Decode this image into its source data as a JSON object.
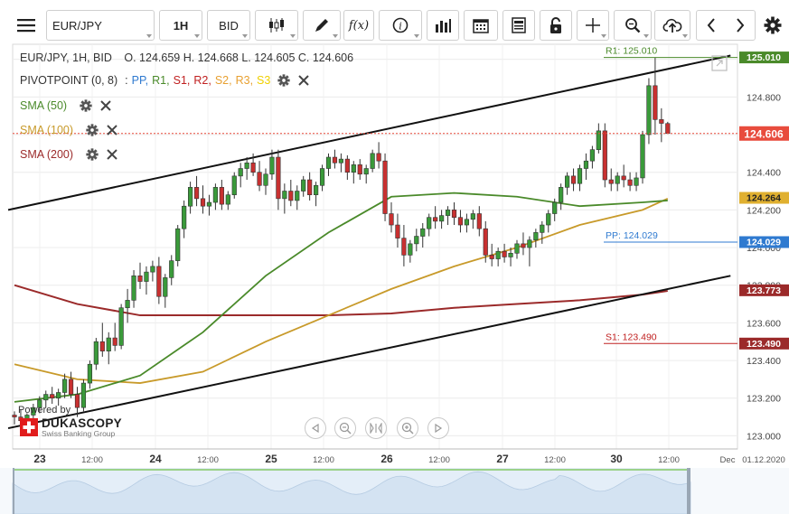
{
  "toolbar": {
    "symbol": "EUR/JPY",
    "interval": "1H",
    "price_type": "BID",
    "icons": [
      "menu-icon",
      "candles-icon",
      "draw-icon",
      "function-icon",
      "info-icon",
      "bars-icon",
      "calendar-icon",
      "report-icon",
      "lock-icon",
      "crosshair-icon",
      "zoom-icon",
      "upload-icon",
      "back-icon",
      "forward-icon",
      "settings-icon"
    ]
  },
  "legend": {
    "title": "EUR/JPY, 1H, BID",
    "ohlc": "O. 124.659 H. 124.668 L. 124.605 C. 124.606",
    "pivot_label": "PIVOTPOINT (0, 8)",
    "pivot_sep": ":",
    "pivot_series": [
      {
        "name": "PP,",
        "color": "#2f7ad0"
      },
      {
        "name": "R1,",
        "color": "#4a8a2a"
      },
      {
        "name": "S1,",
        "color": "#c02020"
      },
      {
        "name": "R2,",
        "color": "#c02020"
      },
      {
        "name": "S2,",
        "color": "#e8a030"
      },
      {
        "name": "R3,",
        "color": "#e8a030"
      },
      {
        "name": "S3",
        "color": "#f0d000"
      }
    ],
    "sma": [
      {
        "label": "SMA (50)",
        "color": "#4a8a2a"
      },
      {
        "label": "SMA (100)",
        "color": "#c89a2a"
      },
      {
        "label": "SMA (200)",
        "color": "#9b2a2a"
      }
    ]
  },
  "branding": {
    "powered_by": "Powered by",
    "logo": "DUKASCOPY",
    "logo_sub": "Swiss Banking Group"
  },
  "chart_data": {
    "type": "line",
    "title": "EUR/JPY, 1H, BID",
    "current_price": 124.606,
    "y_ticks": [
      123.0,
      123.2,
      123.4,
      123.6,
      123.8,
      124.0,
      124.2,
      124.4,
      124.6,
      124.8,
      125.0
    ],
    "y_tick_labels": [
      "123.000",
      "123.200",
      "123.400",
      "123.600",
      "123.800",
      "124.000",
      "124.200",
      "124.400",
      "124.600",
      "124.800",
      "125.000"
    ],
    "ylim": [
      122.93,
      125.08
    ],
    "x_labels": [
      "23",
      "12:00",
      "24",
      "12:00",
      "25",
      "12:00",
      "26",
      "12:00",
      "27",
      "12:00",
      "30",
      "12:00",
      "Dec",
      "01.12.2020"
    ],
    "x_major": [
      "23",
      "24",
      "25",
      "26",
      "27",
      "30"
    ],
    "pivots": [
      {
        "name": "R1",
        "label": "R1: 125.010",
        "value": 125.01,
        "color": "#4a8a2a"
      },
      {
        "name": "PP",
        "label": "PP: 124.029",
        "value": 124.029,
        "color": "#2f7ad0"
      },
      {
        "name": "S1",
        "label": "S1: 123.490",
        "value": 123.49,
        "color": "#c02020"
      }
    ],
    "price_tags": [
      {
        "label": "125.010",
        "value": 125.01,
        "color": "#4a8a2a"
      },
      {
        "label": "124.606",
        "value": 124.606,
        "color": "#e84c3d"
      },
      {
        "label": "124.264",
        "value": 124.264,
        "color": "#e0b030"
      },
      {
        "label": "124.029",
        "value": 124.029,
        "color": "#2f7ad0"
      },
      {
        "label": "123.773",
        "value": 123.773,
        "color": "#9b2a2a"
      },
      {
        "label": "123.490",
        "value": 123.49,
        "color": "#9b2a2a"
      }
    ],
    "candles": [
      {
        "o": 123.11,
        "h": 123.13,
        "l": 123.06,
        "c": 123.1
      },
      {
        "o": 123.1,
        "h": 123.14,
        "l": 123.05,
        "c": 123.08
      },
      {
        "o": 123.08,
        "h": 123.12,
        "l": 123.04,
        "c": 123.11
      },
      {
        "o": 123.11,
        "h": 123.17,
        "l": 123.07,
        "c": 123.15
      },
      {
        "o": 123.15,
        "h": 123.21,
        "l": 123.12,
        "c": 123.19
      },
      {
        "o": 123.19,
        "h": 123.24,
        "l": 123.15,
        "c": 123.22
      },
      {
        "o": 123.22,
        "h": 123.26,
        "l": 123.17,
        "c": 123.2
      },
      {
        "o": 123.2,
        "h": 123.25,
        "l": 123.16,
        "c": 123.23
      },
      {
        "o": 123.23,
        "h": 123.33,
        "l": 123.2,
        "c": 123.3
      },
      {
        "o": 123.3,
        "h": 123.34,
        "l": 123.2,
        "c": 123.22
      },
      {
        "o": 123.22,
        "h": 123.26,
        "l": 123.1,
        "c": 123.15
      },
      {
        "o": 123.15,
        "h": 123.3,
        "l": 123.13,
        "c": 123.28
      },
      {
        "o": 123.28,
        "h": 123.4,
        "l": 123.25,
        "c": 123.38
      },
      {
        "o": 123.38,
        "h": 123.52,
        "l": 123.35,
        "c": 123.5
      },
      {
        "o": 123.5,
        "h": 123.6,
        "l": 123.42,
        "c": 123.45
      },
      {
        "o": 123.45,
        "h": 123.55,
        "l": 123.38,
        "c": 123.52
      },
      {
        "o": 123.52,
        "h": 123.6,
        "l": 123.45,
        "c": 123.48
      },
      {
        "o": 123.48,
        "h": 123.7,
        "l": 123.46,
        "c": 123.68
      },
      {
        "o": 123.68,
        "h": 123.78,
        "l": 123.6,
        "c": 123.72
      },
      {
        "o": 123.72,
        "h": 123.88,
        "l": 123.68,
        "c": 123.85
      },
      {
        "o": 123.85,
        "h": 123.92,
        "l": 123.78,
        "c": 123.82
      },
      {
        "o": 123.82,
        "h": 123.9,
        "l": 123.75,
        "c": 123.87
      },
      {
        "o": 123.87,
        "h": 123.93,
        "l": 123.82,
        "c": 123.9
      },
      {
        "o": 123.9,
        "h": 123.95,
        "l": 123.7,
        "c": 123.74
      },
      {
        "o": 123.74,
        "h": 123.86,
        "l": 123.68,
        "c": 123.84
      },
      {
        "o": 123.84,
        "h": 123.96,
        "l": 123.8,
        "c": 123.93
      },
      {
        "o": 123.93,
        "h": 124.12,
        "l": 123.9,
        "c": 124.1
      },
      {
        "o": 124.1,
        "h": 124.25,
        "l": 124.05,
        "c": 124.22
      },
      {
        "o": 124.22,
        "h": 124.35,
        "l": 124.18,
        "c": 124.32
      },
      {
        "o": 124.32,
        "h": 124.38,
        "l": 124.22,
        "c": 124.26
      },
      {
        "o": 124.26,
        "h": 124.33,
        "l": 124.18,
        "c": 124.22
      },
      {
        "o": 124.22,
        "h": 124.28,
        "l": 124.17,
        "c": 124.24
      },
      {
        "o": 124.24,
        "h": 124.34,
        "l": 124.2,
        "c": 124.32
      },
      {
        "o": 124.32,
        "h": 124.36,
        "l": 124.2,
        "c": 124.23
      },
      {
        "o": 124.23,
        "h": 124.3,
        "l": 124.2,
        "c": 124.28
      },
      {
        "o": 124.28,
        "h": 124.4,
        "l": 124.26,
        "c": 124.38
      },
      {
        "o": 124.38,
        "h": 124.45,
        "l": 124.32,
        "c": 124.42
      },
      {
        "o": 124.42,
        "h": 124.48,
        "l": 124.36,
        "c": 124.45
      },
      {
        "o": 124.45,
        "h": 124.5,
        "l": 124.38,
        "c": 124.4
      },
      {
        "o": 124.4,
        "h": 124.46,
        "l": 124.3,
        "c": 124.33
      },
      {
        "o": 124.33,
        "h": 124.42,
        "l": 124.28,
        "c": 124.39
      },
      {
        "o": 124.39,
        "h": 124.52,
        "l": 124.36,
        "c": 124.48
      },
      {
        "o": 124.48,
        "h": 124.52,
        "l": 124.2,
        "c": 124.26
      },
      {
        "o": 124.26,
        "h": 124.34,
        "l": 124.18,
        "c": 124.3
      },
      {
        "o": 124.3,
        "h": 124.36,
        "l": 124.22,
        "c": 124.25
      },
      {
        "o": 124.25,
        "h": 124.33,
        "l": 124.2,
        "c": 124.3
      },
      {
        "o": 124.3,
        "h": 124.38,
        "l": 124.27,
        "c": 124.36
      },
      {
        "o": 124.36,
        "h": 124.4,
        "l": 124.25,
        "c": 124.28
      },
      {
        "o": 124.28,
        "h": 124.35,
        "l": 124.22,
        "c": 124.33
      },
      {
        "o": 124.33,
        "h": 124.44,
        "l": 124.3,
        "c": 124.42
      },
      {
        "o": 124.42,
        "h": 124.5,
        "l": 124.38,
        "c": 124.48
      },
      {
        "o": 124.48,
        "h": 124.52,
        "l": 124.42,
        "c": 124.45
      },
      {
        "o": 124.45,
        "h": 124.5,
        "l": 124.4,
        "c": 124.47
      },
      {
        "o": 124.47,
        "h": 124.49,
        "l": 124.36,
        "c": 124.4
      },
      {
        "o": 124.4,
        "h": 124.46,
        "l": 124.34,
        "c": 124.44
      },
      {
        "o": 124.44,
        "h": 124.47,
        "l": 124.36,
        "c": 124.39
      },
      {
        "o": 124.39,
        "h": 124.44,
        "l": 124.34,
        "c": 124.42
      },
      {
        "o": 124.42,
        "h": 124.52,
        "l": 124.4,
        "c": 124.5
      },
      {
        "o": 124.5,
        "h": 124.56,
        "l": 124.42,
        "c": 124.46
      },
      {
        "o": 124.46,
        "h": 124.5,
        "l": 124.14,
        "c": 124.18
      },
      {
        "o": 124.18,
        "h": 124.24,
        "l": 124.08,
        "c": 124.12
      },
      {
        "o": 124.12,
        "h": 124.18,
        "l": 124.0,
        "c": 124.05
      },
      {
        "o": 124.05,
        "h": 124.12,
        "l": 123.9,
        "c": 123.96
      },
      {
        "o": 123.96,
        "h": 124.04,
        "l": 123.92,
        "c": 124.02
      },
      {
        "o": 124.02,
        "h": 124.1,
        "l": 123.98,
        "c": 124.06
      },
      {
        "o": 124.06,
        "h": 124.13,
        "l": 124.0,
        "c": 124.1
      },
      {
        "o": 124.1,
        "h": 124.18,
        "l": 124.06,
        "c": 124.16
      },
      {
        "o": 124.16,
        "h": 124.22,
        "l": 124.1,
        "c": 124.14
      },
      {
        "o": 124.14,
        "h": 124.2,
        "l": 124.1,
        "c": 124.17
      },
      {
        "o": 124.17,
        "h": 124.22,
        "l": 124.12,
        "c": 124.2
      },
      {
        "o": 124.2,
        "h": 124.24,
        "l": 124.12,
        "c": 124.16
      },
      {
        "o": 124.16,
        "h": 124.2,
        "l": 124.08,
        "c": 124.12
      },
      {
        "o": 124.12,
        "h": 124.18,
        "l": 124.08,
        "c": 124.15
      },
      {
        "o": 124.15,
        "h": 124.2,
        "l": 124.1,
        "c": 124.18
      },
      {
        "o": 124.18,
        "h": 124.22,
        "l": 124.06,
        "c": 124.1
      },
      {
        "o": 124.1,
        "h": 124.14,
        "l": 123.92,
        "c": 123.96
      },
      {
        "o": 123.96,
        "h": 124.02,
        "l": 123.9,
        "c": 123.94
      },
      {
        "o": 123.94,
        "h": 124.0,
        "l": 123.9,
        "c": 123.98
      },
      {
        "o": 123.98,
        "h": 124.02,
        "l": 123.92,
        "c": 123.95
      },
      {
        "o": 123.95,
        "h": 124.0,
        "l": 123.9,
        "c": 123.97
      },
      {
        "o": 123.97,
        "h": 124.04,
        "l": 123.94,
        "c": 124.02
      },
      {
        "o": 124.02,
        "h": 124.08,
        "l": 123.96,
        "c": 124.0
      },
      {
        "o": 124.0,
        "h": 124.06,
        "l": 123.9,
        "c": 124.04
      },
      {
        "o": 124.04,
        "h": 124.1,
        "l": 124.0,
        "c": 124.08
      },
      {
        "o": 124.08,
        "h": 124.14,
        "l": 124.02,
        "c": 124.12
      },
      {
        "o": 124.12,
        "h": 124.2,
        "l": 124.08,
        "c": 124.18
      },
      {
        "o": 124.18,
        "h": 124.26,
        "l": 124.14,
        "c": 124.24
      },
      {
        "o": 124.24,
        "h": 124.34,
        "l": 124.2,
        "c": 124.32
      },
      {
        "o": 124.32,
        "h": 124.4,
        "l": 124.28,
        "c": 124.38
      },
      {
        "o": 124.38,
        "h": 124.42,
        "l": 124.3,
        "c": 124.34
      },
      {
        "o": 124.34,
        "h": 124.44,
        "l": 124.3,
        "c": 124.42
      },
      {
        "o": 124.42,
        "h": 124.5,
        "l": 124.36,
        "c": 124.46
      },
      {
        "o": 124.46,
        "h": 124.54,
        "l": 124.42,
        "c": 124.52
      },
      {
        "o": 124.52,
        "h": 124.66,
        "l": 124.5,
        "c": 124.62
      },
      {
        "o": 124.62,
        "h": 124.66,
        "l": 124.32,
        "c": 124.36
      },
      {
        "o": 124.36,
        "h": 124.42,
        "l": 124.3,
        "c": 124.34
      },
      {
        "o": 124.34,
        "h": 124.4,
        "l": 124.3,
        "c": 124.38
      },
      {
        "o": 124.38,
        "h": 124.44,
        "l": 124.32,
        "c": 124.36
      },
      {
        "o": 124.36,
        "h": 124.4,
        "l": 124.3,
        "c": 124.33
      },
      {
        "o": 124.33,
        "h": 124.4,
        "l": 124.3,
        "c": 124.37
      },
      {
        "o": 124.37,
        "h": 124.62,
        "l": 124.34,
        "c": 124.6
      },
      {
        "o": 124.6,
        "h": 124.9,
        "l": 124.55,
        "c": 124.86
      },
      {
        "o": 124.86,
        "h": 125.01,
        "l": 124.6,
        "c": 124.68
      },
      {
        "o": 124.68,
        "h": 124.74,
        "l": 124.56,
        "c": 124.66
      },
      {
        "o": 124.659,
        "h": 124.668,
        "l": 124.605,
        "c": 124.606
      }
    ],
    "sma_50": [
      [
        0,
        123.18
      ],
      [
        10,
        123.22
      ],
      [
        20,
        123.32
      ],
      [
        30,
        123.55
      ],
      [
        40,
        123.85
      ],
      [
        50,
        124.08
      ],
      [
        60,
        124.27
      ],
      [
        70,
        124.29
      ],
      [
        80,
        124.27
      ],
      [
        90,
        124.22
      ],
      [
        100,
        124.24
      ],
      [
        104,
        124.25
      ]
    ],
    "sma_100": [
      [
        0,
        123.38
      ],
      [
        10,
        123.3
      ],
      [
        20,
        123.28
      ],
      [
        30,
        123.34
      ],
      [
        40,
        123.5
      ],
      [
        50,
        123.64
      ],
      [
        60,
        123.78
      ],
      [
        70,
        123.9
      ],
      [
        80,
        124.0
      ],
      [
        90,
        124.12
      ],
      [
        100,
        124.2
      ],
      [
        104,
        124.26
      ]
    ],
    "sma_200": [
      [
        0,
        123.8
      ],
      [
        10,
        123.7
      ],
      [
        20,
        123.64
      ],
      [
        30,
        123.64
      ],
      [
        40,
        123.64
      ],
      [
        50,
        123.64
      ],
      [
        60,
        123.65
      ],
      [
        70,
        123.68
      ],
      [
        80,
        123.7
      ],
      [
        90,
        123.72
      ],
      [
        100,
        123.75
      ],
      [
        104,
        123.77
      ]
    ],
    "channel_top": [
      [
        -1,
        124.2
      ],
      [
        114,
        125.02
      ]
    ],
    "channel_bottom": [
      [
        -1,
        123.04
      ],
      [
        114,
        123.85
      ]
    ]
  }
}
